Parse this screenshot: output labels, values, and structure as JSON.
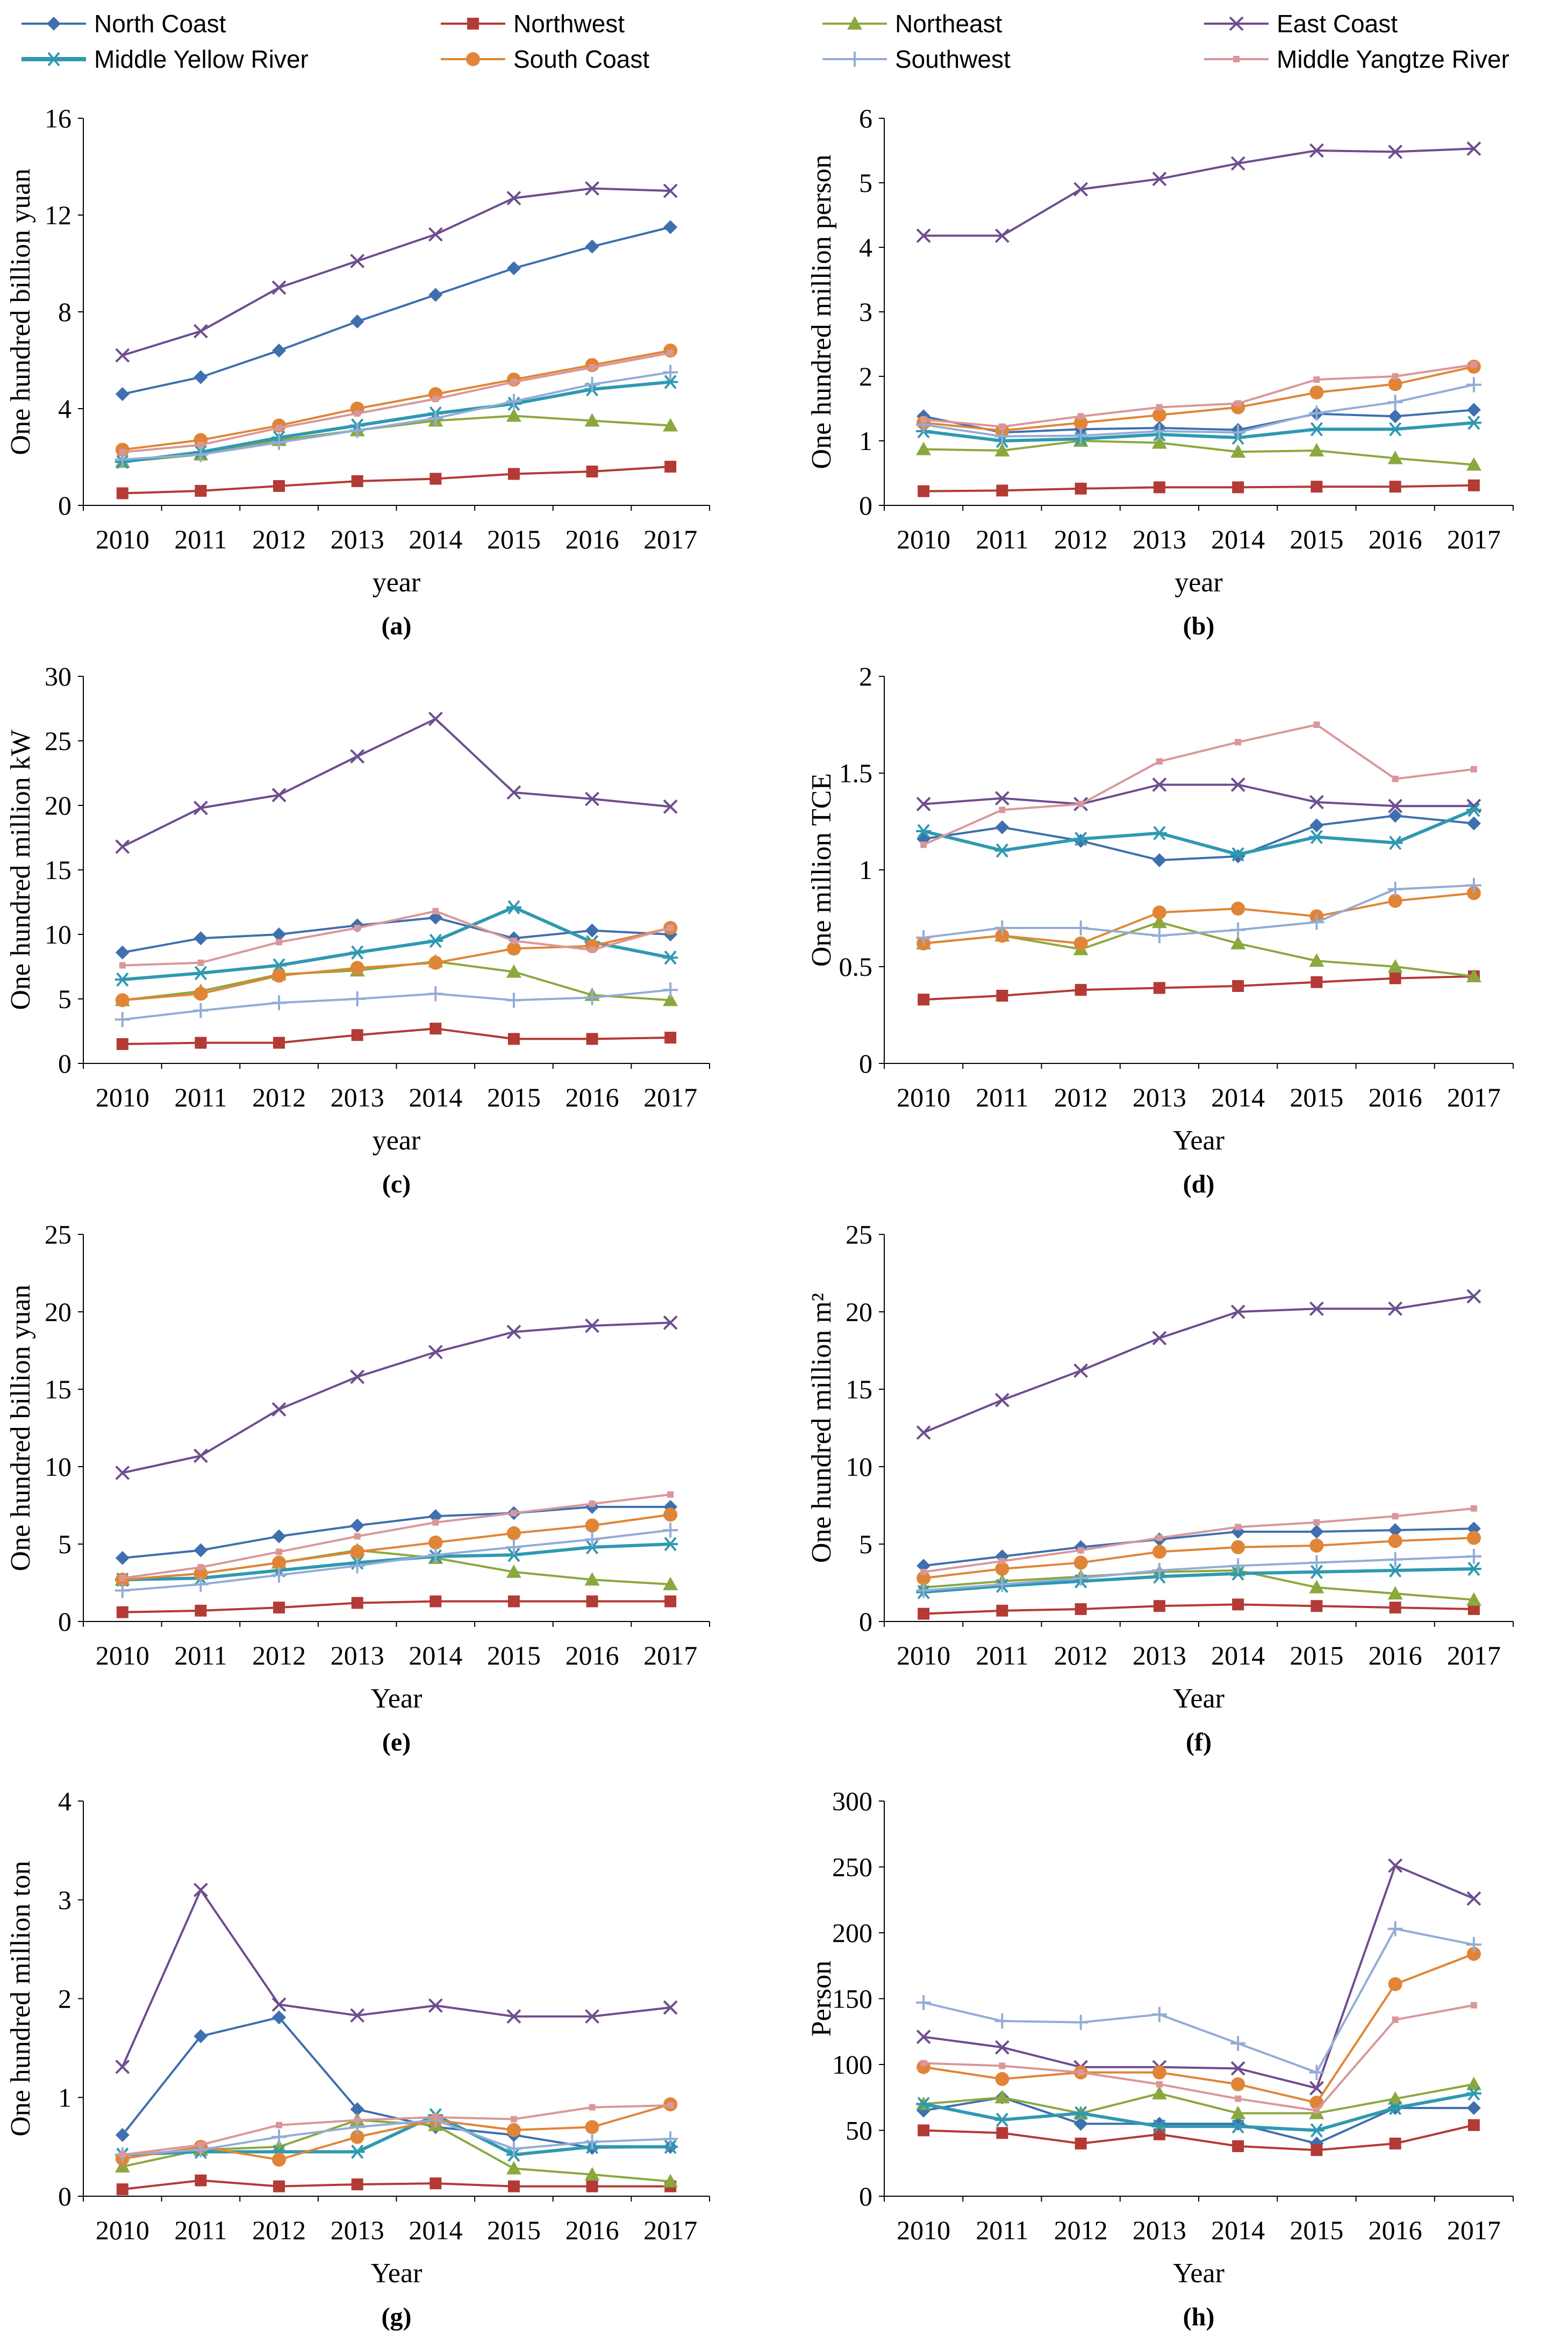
{
  "legend": [
    {
      "name": "North Coast",
      "color": "#3f6fae",
      "marker": "diamond"
    },
    {
      "name": "Northwest",
      "color": "#b33a35",
      "marker": "square"
    },
    {
      "name": "Northeast",
      "color": "#8ba83e",
      "marker": "triangle"
    },
    {
      "name": "East Coast",
      "color": "#6e4d8f",
      "marker": "x"
    },
    {
      "name": "Middle Yellow River",
      "color": "#2f99b1",
      "marker": "star"
    },
    {
      "name": "South Coast",
      "color": "#e08537",
      "marker": "circle"
    },
    {
      "name": "Southwest",
      "color": "#93acd6",
      "marker": "plus"
    },
    {
      "name": "Middle Yangtze River",
      "color": "#d9979a",
      "marker": "smallsquare"
    }
  ],
  "chart_data": [
    {
      "type": "line",
      "label": "(a)",
      "xlabel": "year",
      "ylabel": "One hundred billion yuan",
      "categories": [
        "2010",
        "2011",
        "2012",
        "2013",
        "2014",
        "2015",
        "2016",
        "2017"
      ],
      "ylim": [
        0,
        16
      ],
      "yticks": [
        "0",
        "4",
        "8",
        "12",
        "16"
      ],
      "series": [
        {
          "name": "North Coast",
          "values": [
            4.6,
            5.3,
            6.4,
            7.6,
            8.7,
            9.8,
            10.7,
            11.5
          ]
        },
        {
          "name": "Northwest",
          "values": [
            0.5,
            0.6,
            0.8,
            1.0,
            1.1,
            1.3,
            1.4,
            1.6
          ]
        },
        {
          "name": "Northeast",
          "values": [
            1.8,
            2.1,
            2.7,
            3.1,
            3.5,
            3.7,
            3.5,
            3.3
          ]
        },
        {
          "name": "East Coast",
          "values": [
            6.2,
            7.2,
            9.0,
            10.1,
            11.2,
            12.7,
            13.1,
            13.0
          ]
        },
        {
          "name": "Middle Yellow River",
          "values": [
            1.8,
            2.2,
            2.8,
            3.3,
            3.8,
            4.2,
            4.8,
            5.1
          ]
        },
        {
          "name": "South Coast",
          "values": [
            2.3,
            2.7,
            3.3,
            4.0,
            4.6,
            5.2,
            5.8,
            6.4
          ]
        },
        {
          "name": "Southwest",
          "values": [
            1.9,
            2.1,
            2.6,
            3.1,
            3.6,
            4.3,
            5.0,
            5.5
          ]
        },
        {
          "name": "Middle Yangtze River",
          "values": [
            2.2,
            2.5,
            3.2,
            3.8,
            4.4,
            5.1,
            5.7,
            6.3
          ]
        }
      ]
    },
    {
      "type": "line",
      "label": "(b)",
      "xlabel": "year",
      "ylabel": "One hundred million person",
      "categories": [
        "2010",
        "2011",
        "2012",
        "2013",
        "2014",
        "2015",
        "2016",
        "2017"
      ],
      "ylim": [
        0,
        6
      ],
      "yticks": [
        "0",
        "1",
        "2",
        "3",
        "4",
        "5",
        "6"
      ],
      "series": [
        {
          "name": "North Coast",
          "values": [
            1.38,
            1.13,
            1.18,
            1.2,
            1.17,
            1.42,
            1.38,
            1.48
          ]
        },
        {
          "name": "Northwest",
          "values": [
            0.22,
            0.23,
            0.26,
            0.28,
            0.28,
            0.29,
            0.29,
            0.31
          ]
        },
        {
          "name": "Northeast",
          "values": [
            0.87,
            0.85,
            1.0,
            0.97,
            0.83,
            0.85,
            0.73,
            0.63
          ]
        },
        {
          "name": "East Coast",
          "values": [
            4.18,
            4.18,
            4.9,
            5.06,
            5.3,
            5.5,
            5.48,
            5.53
          ]
        },
        {
          "name": "Middle Yellow River",
          "values": [
            1.15,
            1.0,
            1.03,
            1.1,
            1.05,
            1.18,
            1.18,
            1.28
          ]
        },
        {
          "name": "South Coast",
          "values": [
            1.28,
            1.16,
            1.28,
            1.4,
            1.52,
            1.75,
            1.88,
            2.15
          ]
        },
        {
          "name": "Southwest",
          "values": [
            1.25,
            1.07,
            1.08,
            1.15,
            1.13,
            1.43,
            1.6,
            1.87
          ]
        },
        {
          "name": "Middle Yangtze River",
          "values": [
            1.33,
            1.22,
            1.38,
            1.52,
            1.58,
            1.95,
            2.0,
            2.18
          ]
        }
      ]
    },
    {
      "type": "line",
      "label": "(c)",
      "xlabel": "year",
      "ylabel": "One hundred million kW",
      "categories": [
        "2010",
        "2011",
        "2012",
        "2013",
        "2014",
        "2015",
        "2016",
        "2017"
      ],
      "ylim": [
        0,
        30
      ],
      "yticks": [
        "0",
        "5",
        "10",
        "15",
        "20",
        "25",
        "30"
      ],
      "series": [
        {
          "name": "North Coast",
          "values": [
            8.6,
            9.7,
            10.0,
            10.7,
            11.3,
            9.7,
            10.3,
            10.0
          ]
        },
        {
          "name": "Northwest",
          "values": [
            1.5,
            1.6,
            1.6,
            2.2,
            2.7,
            1.9,
            1.9,
            2.0
          ]
        },
        {
          "name": "Northeast",
          "values": [
            4.9,
            5.6,
            6.9,
            7.2,
            7.9,
            7.1,
            5.3,
            4.9
          ]
        },
        {
          "name": "East Coast",
          "values": [
            16.8,
            19.8,
            20.8,
            23.8,
            26.7,
            21.0,
            20.5,
            19.9
          ]
        },
        {
          "name": "Middle Yellow River",
          "values": [
            6.5,
            7.0,
            7.6,
            8.6,
            9.5,
            12.1,
            9.4,
            8.2
          ]
        },
        {
          "name": "South Coast",
          "values": [
            4.9,
            5.4,
            6.8,
            7.4,
            7.8,
            8.9,
            9.1,
            10.5
          ]
        },
        {
          "name": "Southwest",
          "values": [
            3.4,
            4.1,
            4.7,
            5.0,
            5.4,
            4.9,
            5.1,
            5.7
          ]
        },
        {
          "name": "Middle Yangtze River",
          "values": [
            7.6,
            7.8,
            9.4,
            10.5,
            11.8,
            9.5,
            8.8,
            10.5
          ]
        }
      ]
    },
    {
      "type": "line",
      "label": "(d)",
      "xlabel": "Year",
      "ylabel": "One million TCE",
      "categories": [
        "2010",
        "2011",
        "2012",
        "2013",
        "2014",
        "2015",
        "2016",
        "2017"
      ],
      "ylim": [
        0,
        2
      ],
      "yticks": [
        "0",
        "0.5",
        "1",
        "1.5",
        "2"
      ],
      "series": [
        {
          "name": "North Coast",
          "values": [
            1.16,
            1.22,
            1.15,
            1.05,
            1.07,
            1.23,
            1.28,
            1.24
          ]
        },
        {
          "name": "Northwest",
          "values": [
            0.33,
            0.35,
            0.38,
            0.39,
            0.4,
            0.42,
            0.44,
            0.45
          ]
        },
        {
          "name": "Northeast",
          "values": [
            0.62,
            0.66,
            0.59,
            0.73,
            0.62,
            0.53,
            0.5,
            0.45
          ]
        },
        {
          "name": "East Coast",
          "values": [
            1.34,
            1.37,
            1.34,
            1.44,
            1.44,
            1.35,
            1.33,
            1.33
          ]
        },
        {
          "name": "Middle Yellow River",
          "values": [
            1.2,
            1.1,
            1.16,
            1.19,
            1.08,
            1.17,
            1.14,
            1.31
          ]
        },
        {
          "name": "South Coast",
          "values": [
            0.62,
            0.66,
            0.62,
            0.78,
            0.8,
            0.76,
            0.84,
            0.88
          ]
        },
        {
          "name": "Southwest",
          "values": [
            0.65,
            0.7,
            0.7,
            0.66,
            0.69,
            0.73,
            0.9,
            0.92
          ]
        },
        {
          "name": "Middle Yangtze River",
          "values": [
            1.13,
            1.31,
            1.34,
            1.56,
            1.66,
            1.75,
            1.47,
            1.52
          ]
        }
      ]
    },
    {
      "type": "line",
      "label": "(e)",
      "xlabel": "Year",
      "ylabel": "One hundred billion yuan",
      "categories": [
        "2010",
        "2011",
        "2012",
        "2013",
        "2014",
        "2015",
        "2016",
        "2017"
      ],
      "ylim": [
        0,
        25
      ],
      "yticks": [
        "0",
        "5",
        "10",
        "15",
        "20",
        "25"
      ],
      "series": [
        {
          "name": "North Coast",
          "values": [
            4.1,
            4.6,
            5.5,
            6.2,
            6.8,
            7.0,
            7.4,
            7.4
          ]
        },
        {
          "name": "Northwest",
          "values": [
            0.6,
            0.7,
            0.9,
            1.2,
            1.3,
            1.3,
            1.3,
            1.3
          ]
        },
        {
          "name": "Northeast",
          "values": [
            2.7,
            3.1,
            3.8,
            4.6,
            4.1,
            3.2,
            2.7,
            2.4
          ]
        },
        {
          "name": "East Coast",
          "values": [
            9.6,
            10.7,
            13.7,
            15.8,
            17.4,
            18.7,
            19.1,
            19.3
          ]
        },
        {
          "name": "Middle Yellow River",
          "values": [
            2.7,
            2.8,
            3.3,
            3.8,
            4.2,
            4.3,
            4.8,
            5.0
          ]
        },
        {
          "name": "South Coast",
          "values": [
            2.7,
            3.1,
            3.8,
            4.5,
            5.1,
            5.7,
            6.2,
            6.9
          ]
        },
        {
          "name": "Southwest",
          "values": [
            2.0,
            2.4,
            3.0,
            3.6,
            4.3,
            4.8,
            5.3,
            5.9
          ]
        },
        {
          "name": "Middle Yangtze River",
          "values": [
            2.8,
            3.5,
            4.5,
            5.5,
            6.4,
            7.0,
            7.6,
            8.2
          ]
        }
      ]
    },
    {
      "type": "line",
      "label": "(f)",
      "xlabel": "Year",
      "ylabel": "One hundred million m²",
      "categories": [
        "2010",
        "2011",
        "2012",
        "2013",
        "2014",
        "2015",
        "2016",
        "2017"
      ],
      "ylim": [
        0,
        25
      ],
      "yticks": [
        "0",
        "5",
        "10",
        "15",
        "20",
        "25"
      ],
      "series": [
        {
          "name": "North Coast",
          "values": [
            3.6,
            4.2,
            4.8,
            5.3,
            5.8,
            5.8,
            5.9,
            6.0
          ]
        },
        {
          "name": "Northwest",
          "values": [
            0.5,
            0.7,
            0.8,
            1.0,
            1.1,
            1.0,
            0.9,
            0.8
          ]
        },
        {
          "name": "Northeast",
          "values": [
            2.2,
            2.6,
            2.9,
            3.2,
            3.3,
            2.2,
            1.8,
            1.4
          ]
        },
        {
          "name": "East Coast",
          "values": [
            12.2,
            14.3,
            16.2,
            18.3,
            20.0,
            20.2,
            20.2,
            21.0
          ]
        },
        {
          "name": "Middle Yellow River",
          "values": [
            1.9,
            2.3,
            2.6,
            2.9,
            3.1,
            3.2,
            3.3,
            3.4
          ]
        },
        {
          "name": "South Coast",
          "values": [
            2.8,
            3.4,
            3.8,
            4.5,
            4.8,
            4.9,
            5.2,
            5.4
          ]
        },
        {
          "name": "Southwest",
          "values": [
            2.0,
            2.4,
            2.8,
            3.3,
            3.6,
            3.8,
            4.0,
            4.2
          ]
        },
        {
          "name": "Middle Yangtze River",
          "values": [
            3.2,
            3.9,
            4.6,
            5.4,
            6.1,
            6.4,
            6.8,
            7.3
          ]
        }
      ]
    },
    {
      "type": "line",
      "label": "(g)",
      "xlabel": "Year",
      "ylabel": "One hundred million ton",
      "categories": [
        "2010",
        "2011",
        "2012",
        "2013",
        "2014",
        "2015",
        "2016",
        "2017"
      ],
      "ylim": [
        0,
        4
      ],
      "yticks": [
        "0",
        "1",
        "2",
        "3",
        "4"
      ],
      "series": [
        {
          "name": "North Coast",
          "values": [
            0.62,
            1.62,
            1.81,
            0.88,
            0.7,
            0.62,
            0.49,
            0.5
          ]
        },
        {
          "name": "Northwest",
          "values": [
            0.07,
            0.16,
            0.1,
            0.12,
            0.13,
            0.1,
            0.1,
            0.1
          ]
        },
        {
          "name": "Northeast",
          "values": [
            0.3,
            0.47,
            0.5,
            0.77,
            0.72,
            0.28,
            0.22,
            0.15
          ]
        },
        {
          "name": "East Coast",
          "values": [
            1.31,
            3.1,
            1.94,
            1.83,
            1.93,
            1.82,
            1.82,
            1.91
          ]
        },
        {
          "name": "Middle Yellow River",
          "values": [
            0.42,
            0.45,
            0.45,
            0.45,
            0.82,
            0.42,
            0.5,
            0.5
          ]
        },
        {
          "name": "South Coast",
          "values": [
            0.38,
            0.5,
            0.37,
            0.6,
            0.77,
            0.67,
            0.7,
            0.93
          ]
        },
        {
          "name": "Southwest",
          "values": [
            0.42,
            0.47,
            0.6,
            0.7,
            0.77,
            0.48,
            0.55,
            0.58
          ]
        },
        {
          "name": "Middle Yangtze River",
          "values": [
            0.42,
            0.52,
            0.72,
            0.77,
            0.8,
            0.78,
            0.9,
            0.92
          ]
        }
      ]
    },
    {
      "type": "line",
      "label": "(h)",
      "xlabel": "Year",
      "ylabel": "Person",
      "categories": [
        "2010",
        "2011",
        "2012",
        "2013",
        "2014",
        "2015",
        "2016",
        "2017"
      ],
      "ylim": [
        0,
        300
      ],
      "yticks": [
        "0",
        "50",
        "100",
        "150",
        "200",
        "250",
        "300"
      ],
      "series": [
        {
          "name": "North Coast",
          "values": [
            65,
            75,
            55,
            55,
            55,
            40,
            67,
            67
          ]
        },
        {
          "name": "Northwest",
          "values": [
            50,
            48,
            40,
            47,
            38,
            35,
            40,
            54
          ]
        },
        {
          "name": "Northeast",
          "values": [
            70,
            75,
            63,
            78,
            63,
            63,
            74,
            85
          ]
        },
        {
          "name": "East Coast",
          "values": [
            121,
            113,
            98,
            98,
            97,
            82,
            251,
            226
          ]
        },
        {
          "name": "Middle Yellow River",
          "values": [
            70,
            58,
            63,
            53,
            53,
            50,
            67,
            78
          ]
        },
        {
          "name": "South Coast",
          "values": [
            98,
            89,
            94,
            94,
            85,
            71,
            161,
            184
          ]
        },
        {
          "name": "Southwest",
          "values": [
            147,
            133,
            132,
            138,
            116,
            94,
            203,
            191
          ]
        },
        {
          "name": "Middle Yangtze River",
          "values": [
            101,
            99,
            94,
            85,
            74,
            65,
            134,
            145
          ]
        }
      ]
    }
  ]
}
